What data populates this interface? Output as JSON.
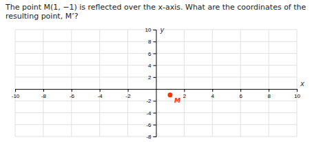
{
  "chart_data": {
    "type": "scatter",
    "title": "The point M(1, −1) is reflected over the x-axis. What are the coordinates of the resulting point, M’?",
    "x_label": "x",
    "y_label": "y",
    "x": [
      1
    ],
    "values": [
      -1
    ],
    "color": "#ff3300",
    "annotations": [
      {
        "text": "M",
        "x": 1,
        "y": -1
      }
    ],
    "xlim": [
      -10,
      10
    ],
    "ylim": [
      -8,
      10
    ],
    "xticks": [
      -10,
      -8,
      -6,
      -4,
      -2,
      2,
      4,
      6,
      8,
      10
    ],
    "yticks": [
      -8,
      -6,
      -4,
      -2,
      2,
      4,
      6,
      8,
      10
    ],
    "grid": true
  }
}
